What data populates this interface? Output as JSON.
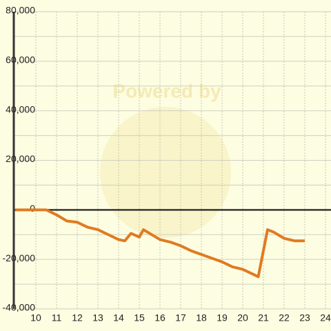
{
  "chart_data": {
    "type": "line",
    "watermark": "Powered by",
    "x": [
      9,
      10,
      10.5,
      11,
      11.5,
      12,
      12.5,
      13,
      13.5,
      14,
      14.3,
      14.6,
      15,
      15.2,
      15.5,
      16,
      16.5,
      17,
      17.5,
      18,
      18.5,
      19,
      19.5,
      20,
      20.5,
      20.75,
      21.2,
      21.5,
      22,
      22.5,
      23
    ],
    "series": [
      {
        "color": "#e07b20",
        "values": [
          0,
          0,
          0,
          -2000,
          -4500,
          -5000,
          -7000,
          -8000,
          -10000,
          -12000,
          -12500,
          -9500,
          -11000,
          -8000,
          -9500,
          -12000,
          -13000,
          -14500,
          -16500,
          -18000,
          -19500,
          -21000,
          -23000,
          -24000,
          -26000,
          -27000,
          -8000,
          -9000,
          -11500,
          -12500,
          -12500
        ]
      }
    ],
    "xlim": [
      8.9,
      24.3
    ],
    "xticks": [
      10,
      11,
      12,
      13,
      14,
      15,
      16,
      17,
      18,
      19,
      20,
      21,
      22,
      23,
      24
    ],
    "ylim": [
      -40000,
      80000
    ],
    "yticks": [
      {
        "value": -40000,
        "label": "-40,000"
      },
      {
        "value": -20000,
        "label": "-20,000"
      },
      0,
      {
        "value": 20000,
        "label": "20,000"
      },
      {
        "value": 40000,
        "label": "40,000"
      },
      {
        "value": 60000,
        "label": "60,000"
      },
      {
        "value": 80000,
        "label": "80,000"
      }
    ],
    "yminorticks": [
      -30000,
      -10000,
      10000,
      30000,
      50000,
      70000
    ],
    "grid": true
  }
}
